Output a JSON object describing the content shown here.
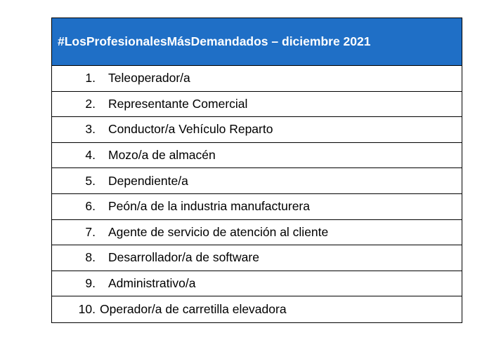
{
  "table": {
    "header": "#LosProfesionalesMásDemandados – diciembre 2021",
    "rows": [
      {
        "num": "1.",
        "label": "Teleoperador/a"
      },
      {
        "num": "2.",
        "label": "Representante Comercial"
      },
      {
        "num": "3.",
        "label": "Conductor/a Vehículo Reparto"
      },
      {
        "num": "4.",
        "label": "Mozo/a de almacén"
      },
      {
        "num": "5.",
        "label": "Dependiente/a"
      },
      {
        "num": "6.",
        "label": "Peón/a de la industria manufacturera"
      },
      {
        "num": "7.",
        "label": "Agente de servicio de atención al cliente"
      },
      {
        "num": "8.",
        "label": "Desarrollador/a de software"
      },
      {
        "num": "9.",
        "label": "Administrativo/a"
      },
      {
        "num": "10.",
        "label": "Operador/a de carretilla elevadora"
      }
    ]
  },
  "colors": {
    "header_bg": "#1f6fc6",
    "header_text": "#ffffff",
    "border": "#000000"
  }
}
